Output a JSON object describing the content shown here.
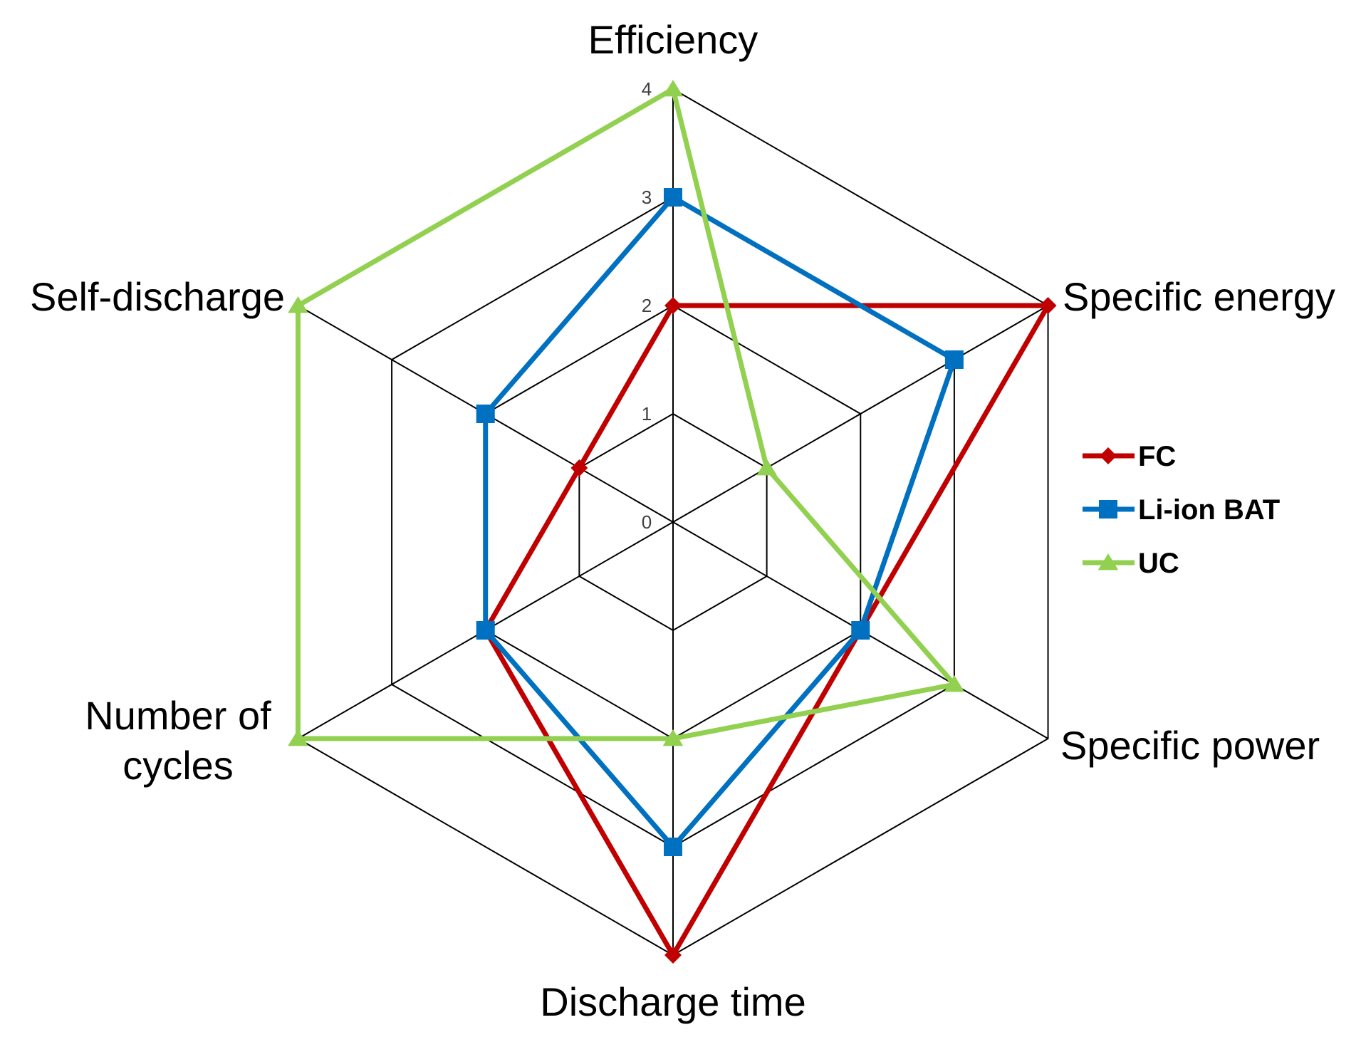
{
  "chart_data": {
    "type": "radar",
    "categories": [
      "Efficiency",
      "Specific energy",
      "Specific power",
      "Discharge time",
      "Number of cycles",
      "Self-discharge"
    ],
    "category_label_lines": [
      [
        "Efficiency"
      ],
      [
        "Specific energy"
      ],
      [
        "Specific power"
      ],
      [
        "Discharge time"
      ],
      [
        "Number of",
        "cycles"
      ],
      [
        "Self-discharge"
      ]
    ],
    "rlim": [
      0,
      4
    ],
    "ticks": [
      "0",
      "1",
      "2",
      "3",
      "4"
    ],
    "grid": true,
    "legend_position": "right",
    "series": [
      {
        "name": "FC",
        "values": [
          2,
          4,
          2,
          4,
          2,
          1
        ],
        "color": "#C00000",
        "marker": "diamond"
      },
      {
        "name": "Li-ion BAT",
        "values": [
          3,
          3,
          2,
          3,
          2,
          2
        ],
        "color": "#0070C0",
        "marker": "square"
      },
      {
        "name": "UC",
        "values": [
          4,
          1,
          3,
          2,
          4,
          4
        ],
        "color": "#92D050",
        "marker": "triangle"
      }
    ]
  }
}
